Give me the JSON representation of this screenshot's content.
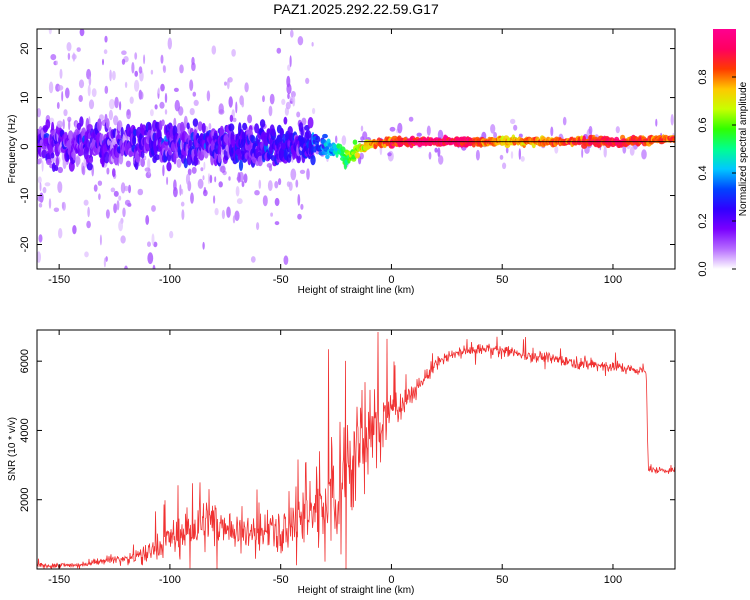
{
  "title": "PAZ1.2025.292.22.59.G17",
  "chart_data": [
    {
      "type": "heatmap",
      "title": "PAZ1.2025.292.22.59.G17",
      "xlabel": "Height of straight line (km)",
      "ylabel": "Frequency (Hz)",
      "xlim": [
        -160,
        128
      ],
      "ylim": [
        -25,
        24
      ],
      "xticks": [
        "-150",
        "-100",
        "-50",
        "0",
        "50",
        "100"
      ],
      "xtick_values": [
        -150,
        -100,
        -50,
        0,
        50,
        100
      ],
      "yticks": [
        "-20",
        "-10",
        "0",
        "10",
        "20"
      ],
      "ytick_values": [
        -20,
        -10,
        0,
        10,
        20
      ],
      "colorbar": {
        "label": "Normalized spectral amplitude",
        "range": [
          0,
          1
        ],
        "ticks": [
          "0.0",
          "0.2",
          "0.4",
          "0.6",
          "0.8"
        ],
        "tick_values": [
          0.0,
          0.2,
          0.4,
          0.6,
          0.8
        ],
        "colors": [
          "#ffffff",
          "#b66cff",
          "#7a00ff",
          "#3000ff",
          "#0044ff",
          "#00c8ff",
          "#00ff90",
          "#30ff00",
          "#c8ff00",
          "#ffc800",
          "#ff3a00",
          "#ff0060",
          "#ff0090"
        ]
      },
      "ridge": {
        "description_points_x": [
          -160,
          -40,
          -30,
          -20,
          -10,
          0,
          10,
          20,
          30,
          50,
          100,
          128
        ],
        "frequency": [
          0.5,
          0.5,
          0.0,
          -2.0,
          0.5,
          1.0,
          1.0,
          1.0,
          1.0,
          1.0,
          1.0,
          1.5
        ],
        "amplitude": [
          0.15,
          0.22,
          0.35,
          0.55,
          0.75,
          0.85,
          0.9,
          0.95,
          0.95,
          0.75,
          0.9,
          0.8
        ]
      }
    },
    {
      "type": "line",
      "xlabel": "Height of straight line (km)",
      "ylabel": "SNR (10 * v/v)",
      "xlim": [
        -160,
        128
      ],
      "ylim": [
        0,
        6900
      ],
      "xticks": [
        "-150",
        "-100",
        "-50",
        "0",
        "50",
        "100"
      ],
      "xtick_values": [
        -150,
        -100,
        -50,
        0,
        50,
        100
      ],
      "yticks": [
        "2000",
        "4000",
        "6000"
      ],
      "ytick_values": [
        2000,
        4000,
        6000
      ],
      "color": "#f03232",
      "series": [
        {
          "name": "SNR",
          "x": [
            -160,
            -140,
            -130,
            -120,
            -110,
            -105,
            -100,
            -90,
            -80,
            -70,
            -60,
            -50,
            -40,
            -30,
            -25,
            -20,
            -15,
            -10,
            -5,
            0,
            5,
            10,
            15,
            20,
            25,
            30,
            35,
            40,
            45,
            50,
            60,
            70,
            80,
            90,
            100,
            105,
            110,
            115,
            116,
            117,
            120,
            128
          ],
          "values": [
            100,
            120,
            250,
            300,
            450,
            650,
            900,
            1100,
            1400,
            1100,
            1000,
            1150,
            1500,
            2000,
            2400,
            3000,
            3400,
            3800,
            4300,
            4600,
            4800,
            5100,
            5500,
            5900,
            6100,
            6250,
            6300,
            6350,
            6350,
            6300,
            6200,
            6100,
            6000,
            5900,
            5850,
            5800,
            5750,
            5700,
            2850,
            2850,
            2850,
            2850
          ],
          "noise_amplitude": [
            60,
            60,
            80,
            100,
            250,
            350,
            450,
            550,
            600,
            450,
            400,
            500,
            800,
            1300,
            1500,
            1600,
            1400,
            1100,
            800,
            500,
            350,
            250,
            200,
            200,
            150,
            150,
            150,
            150,
            150,
            150,
            130,
            130,
            130,
            150,
            150,
            130,
            120,
            100,
            80,
            80,
            80,
            80
          ]
        }
      ]
    }
  ]
}
